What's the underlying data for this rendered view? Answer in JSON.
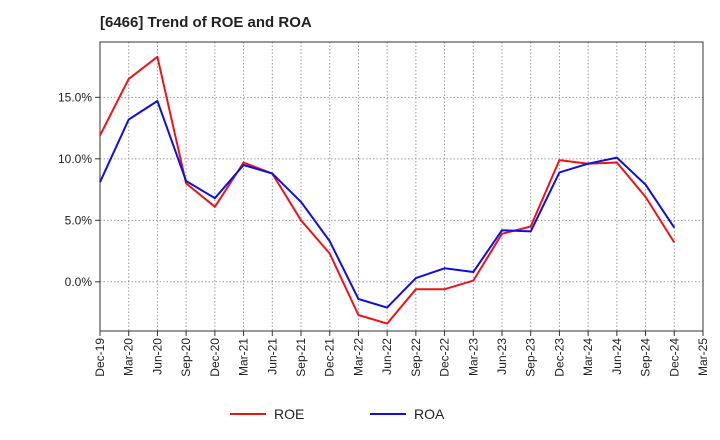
{
  "chart_data": {
    "type": "line",
    "title": "[6466]  Trend of ROE and ROA",
    "x": [
      "Dec-19",
      "Mar-20",
      "Jun-20",
      "Sep-20",
      "Dec-20",
      "Mar-21",
      "Jun-21",
      "Sep-21",
      "Dec-21",
      "Mar-22",
      "Jun-22",
      "Sep-22",
      "Dec-22",
      "Mar-23",
      "Jun-23",
      "Sep-23",
      "Dec-23",
      "Mar-24",
      "Jun-24",
      "Sep-24",
      "Dec-24"
    ],
    "x_ticks": [
      "Dec-19",
      "Mar-20",
      "Jun-20",
      "Sep-20",
      "Dec-20",
      "Mar-21",
      "Jun-21",
      "Sep-21",
      "Dec-21",
      "Mar-22",
      "Jun-22",
      "Sep-22",
      "Dec-22",
      "Mar-23",
      "Jun-23",
      "Sep-23",
      "Dec-23",
      "Mar-24",
      "Jun-24",
      "Sep-24",
      "Dec-24",
      "Mar-25"
    ],
    "y_ticks": [
      0,
      5,
      10,
      15
    ],
    "y_tick_labels": [
      "0.0%",
      "5.0%",
      "10.0%",
      "15.0%"
    ],
    "ylim": [
      -4.0,
      19.5
    ],
    "grid": true,
    "legend_position": "bottom-center",
    "xlabel": "",
    "ylabel": "",
    "series": [
      {
        "name": "ROE",
        "color": "#e8161b",
        "values": [
          11.9,
          16.5,
          18.3,
          8.0,
          6.1,
          9.7,
          8.8,
          5.0,
          2.3,
          -2.7,
          -3.4,
          -0.6,
          -0.6,
          0.1,
          3.9,
          4.5,
          9.9,
          9.6,
          9.7,
          6.9,
          3.2
        ]
      },
      {
        "name": "ROA",
        "color": "#1010d8",
        "values": [
          8.1,
          13.2,
          14.7,
          8.2,
          6.8,
          9.5,
          8.8,
          6.5,
          3.3,
          -1.4,
          -2.1,
          0.3,
          1.1,
          0.8,
          4.2,
          4.1,
          8.9,
          9.6,
          10.1,
          7.9,
          4.4
        ]
      }
    ]
  }
}
